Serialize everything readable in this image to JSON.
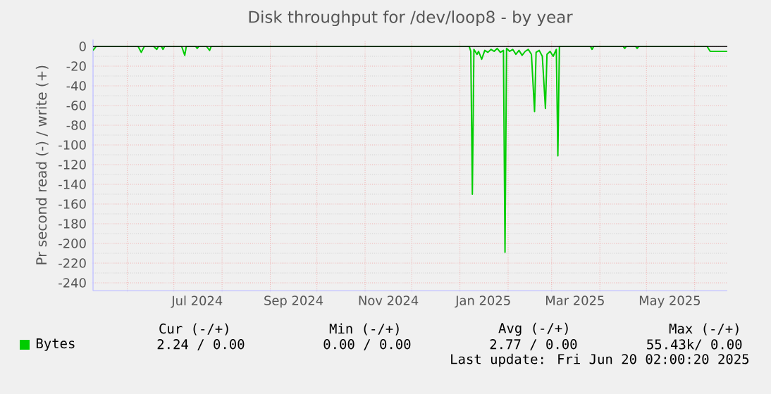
{
  "chart_data": {
    "type": "line",
    "title": "Disk throughput for /dev/loop8 - by year",
    "ylabel": "Pr second read (-) / write (+)",
    "xlim": [
      "2024-05-10",
      "2025-06-22"
    ],
    "ylim": [
      -248,
      7
    ],
    "yticks": [
      0,
      -20,
      -40,
      -60,
      -80,
      -100,
      -120,
      -140,
      -160,
      -180,
      -200,
      -220,
      -240
    ],
    "xticks": [
      {
        "value": "2024-06-01",
        "label": null
      },
      {
        "value": "2024-07-01",
        "label": null
      },
      {
        "value": "2024-07-16",
        "label": "Jul 2024"
      },
      {
        "value": "2024-08-01",
        "label": null
      },
      {
        "value": "2024-09-01",
        "label": null
      },
      {
        "value": "2024-09-16",
        "label": "Sep 2024"
      },
      {
        "value": "2024-10-01",
        "label": null
      },
      {
        "value": "2024-11-01",
        "label": null
      },
      {
        "value": "2024-11-16",
        "label": "Nov 2024"
      },
      {
        "value": "2024-12-01",
        "label": null
      },
      {
        "value": "2025-01-01",
        "label": null
      },
      {
        "value": "2025-01-16",
        "label": "Jan 2025"
      },
      {
        "value": "2025-02-01",
        "label": null
      },
      {
        "value": "2025-03-01",
        "label": null
      },
      {
        "value": "2025-03-16",
        "label": "Mar 2025"
      },
      {
        "value": "2025-04-01",
        "label": null
      },
      {
        "value": "2025-05-01",
        "label": null
      },
      {
        "value": "2025-05-16",
        "label": "May 2025"
      },
      {
        "value": "2025-06-01",
        "label": null
      }
    ],
    "grid": true,
    "legend": "bottom",
    "ref_lines": [
      {
        "axis": "y",
        "value": 0,
        "color": "#000000"
      }
    ],
    "series": [
      {
        "name": "Bytes",
        "color": "#00cc00",
        "x": [
          "2024-05-10",
          "2024-05-12",
          "2024-06-08",
          "2024-06-10",
          "2024-06-12",
          "2024-06-18",
          "2024-06-20",
          "2024-06-21",
          "2024-06-23",
          "2024-06-24",
          "2024-06-25",
          "2024-07-06",
          "2024-07-08",
          "2024-07-09",
          "2024-07-15",
          "2024-07-16",
          "2024-07-17",
          "2024-07-22",
          "2024-07-24",
          "2024-07-25",
          "2025-01-07",
          "2025-01-08",
          "2025-01-09",
          "2025-01-10",
          "2025-01-12",
          "2025-01-13",
          "2025-01-15",
          "2025-01-17",
          "2025-01-19",
          "2025-01-21",
          "2025-01-23",
          "2025-01-25",
          "2025-01-27",
          "2025-01-29",
          "2025-01-30",
          "2025-01-31",
          "2025-02-02",
          "2025-02-04",
          "2025-02-06",
          "2025-02-08",
          "2025-02-10",
          "2025-02-12",
          "2025-02-14",
          "2025-02-16",
          "2025-02-18",
          "2025-02-19",
          "2025-02-21",
          "2025-02-23",
          "2025-02-25",
          "2025-02-26",
          "2025-02-28",
          "2025-03-02",
          "2025-03-04",
          "2025-03-05",
          "2025-03-06",
          "2025-03-26",
          "2025-03-27",
          "2025-03-28",
          "2025-04-16",
          "2025-04-17",
          "2025-04-18",
          "2025-04-24",
          "2025-04-25",
          "2025-04-26",
          "2025-06-09",
          "2025-06-11",
          "2025-06-22"
        ],
        "values": [
          -4,
          0,
          0,
          -6,
          0,
          0,
          -3,
          0,
          0,
          -3,
          0,
          0,
          -9,
          0,
          0,
          -2,
          0,
          0,
          -4,
          0,
          0,
          -5,
          -150,
          -3,
          -8,
          -5,
          -13,
          -4,
          -6,
          -3,
          -5,
          -2,
          -6,
          -4,
          -209,
          -2,
          -5,
          -3,
          -8,
          -4,
          -9,
          -5,
          -3,
          -8,
          -66,
          -6,
          -4,
          -10,
          -63,
          -8,
          -5,
          -10,
          -3,
          -111,
          0,
          0,
          -3,
          0,
          0,
          -2,
          0,
          0,
          -2,
          0,
          0,
          -5,
          -5
        ]
      }
    ],
    "annotations": [
      "Cur (-/+)",
      "Min (-/+)",
      "Avg (-/+)",
      "Max (-/+)",
      "2.24 / 0.00",
      "0.00 / 0.00",
      "2.77 / 0.00",
      "55.43k/ 0.00",
      "Last update: Fri Jun 20 02:00:20 2025"
    ]
  }
}
